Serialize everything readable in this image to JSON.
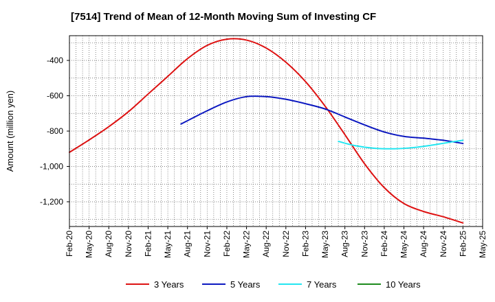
{
  "chart_data": {
    "type": "line",
    "title": "[7514]  Trend of Mean of 12-Month Moving Sum of Investing CF",
    "xlabel": "",
    "ylabel": "Amount (million yen)",
    "ylim": [
      -1340,
      -260
    ],
    "yticks": [
      -400,
      -600,
      -800,
      -1000,
      -1200
    ],
    "ytick_labels": [
      "-400",
      "-600",
      "-800",
      "-1,000",
      "-1,200"
    ],
    "x_categories": [
      "Feb-20",
      "May-20",
      "Aug-20",
      "Nov-20",
      "Feb-21",
      "May-21",
      "Aug-21",
      "Nov-21",
      "Feb-22",
      "May-22",
      "Aug-22",
      "Nov-22",
      "Feb-23",
      "May-23",
      "Aug-23",
      "Nov-23",
      "Feb-24",
      "May-24",
      "Aug-24",
      "Nov-24",
      "Feb-25",
      "May-25"
    ],
    "grid": true,
    "legend_position": "bottom",
    "series": [
      {
        "name": "3 Years",
        "color": "#dd1111",
        "points": [
          [
            0,
            -920
          ],
          [
            1,
            -850
          ],
          [
            2,
            -775
          ],
          [
            3,
            -690
          ],
          [
            4,
            -590
          ],
          [
            5,
            -490
          ],
          [
            6,
            -390
          ],
          [
            7,
            -315
          ],
          [
            8,
            -280
          ],
          [
            9,
            -285
          ],
          [
            10,
            -330
          ],
          [
            11,
            -410
          ],
          [
            12,
            -520
          ],
          [
            13,
            -660
          ],
          [
            14,
            -820
          ],
          [
            15,
            -985
          ],
          [
            16,
            -1120
          ],
          [
            17,
            -1210
          ],
          [
            18,
            -1255
          ],
          [
            19,
            -1285
          ],
          [
            20,
            -1320
          ]
        ]
      },
      {
        "name": "5 Years",
        "color": "#0b17c0",
        "points": [
          [
            5.67,
            -760
          ],
          [
            7,
            -685
          ],
          [
            8,
            -635
          ],
          [
            9,
            -605
          ],
          [
            10,
            -605
          ],
          [
            11,
            -620
          ],
          [
            12,
            -645
          ],
          [
            13,
            -675
          ],
          [
            14,
            -720
          ],
          [
            15,
            -765
          ],
          [
            16,
            -805
          ],
          [
            17,
            -830
          ],
          [
            18,
            -840
          ],
          [
            19,
            -852
          ],
          [
            20,
            -870
          ]
        ]
      },
      {
        "name": "7 Years",
        "color": "#22e5f0",
        "points": [
          [
            13.67,
            -858
          ],
          [
            14.5,
            -882
          ],
          [
            15.5,
            -897
          ],
          [
            16.5,
            -900
          ],
          [
            17.5,
            -893
          ],
          [
            18.5,
            -878
          ],
          [
            19.5,
            -860
          ],
          [
            20,
            -852
          ]
        ]
      },
      {
        "name": "10 Years",
        "color": "#1c8a1c",
        "points": []
      }
    ]
  }
}
